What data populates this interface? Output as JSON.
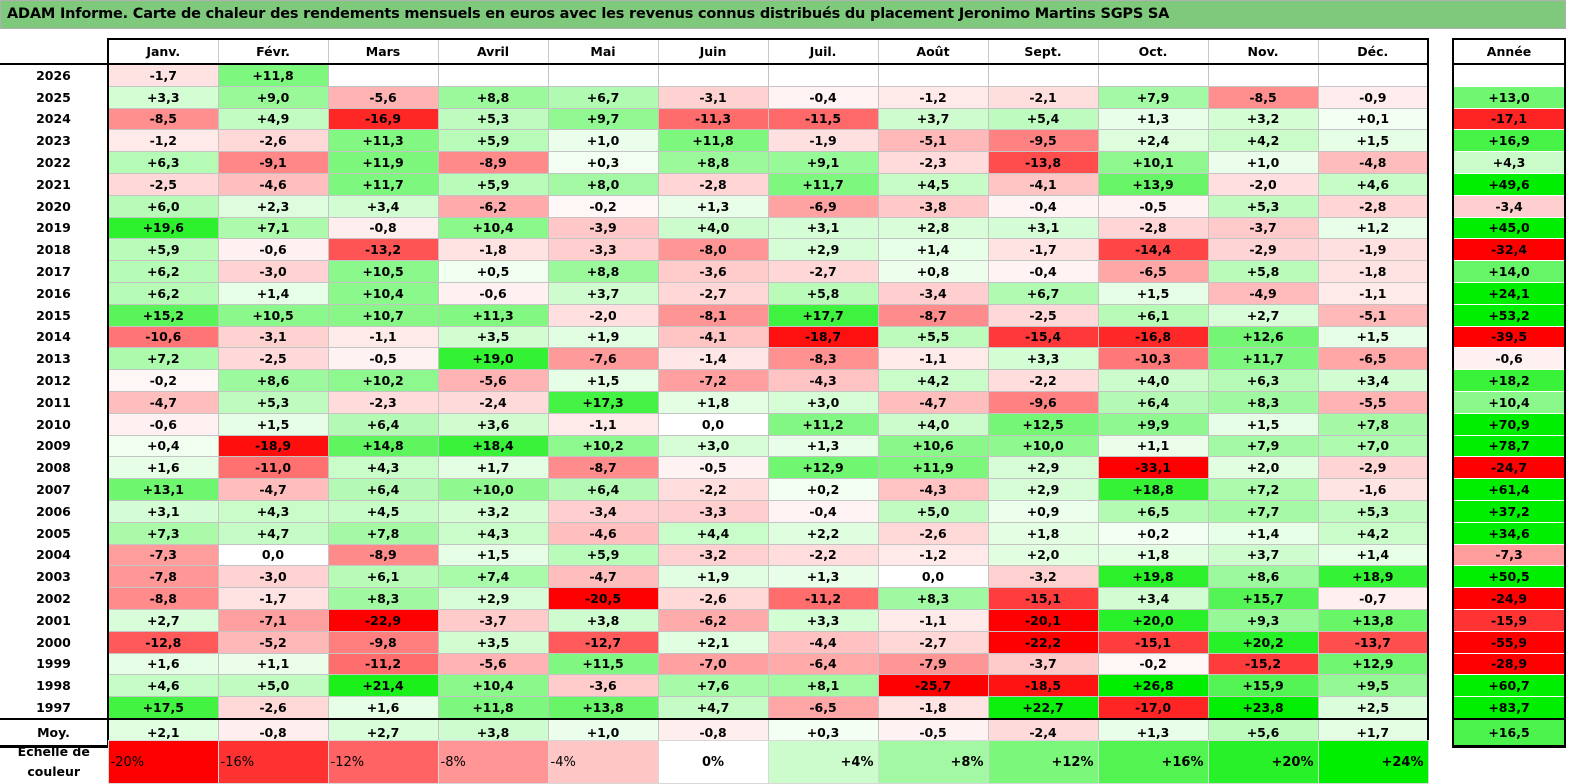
{
  "title": "ADAM Informe. Carte de chaleur des rendements mensuels en euros avec les revenus connus distribués du placement Jeronimo Martins SGPS SA",
  "months": [
    "Janv.",
    "Févr.",
    "Mars",
    "Avril",
    "Mai",
    "Juin",
    "Juil.",
    "Août",
    "Sept.",
    "Oct.",
    "Nov.",
    "Déc."
  ],
  "year_header": "Année",
  "rows": [
    {
      "year": "2026",
      "m": [
        "-1,7",
        "+11,8",
        "",
        "",
        "",
        "",
        "",
        "",
        "",
        "",
        "",
        ""
      ],
      "y": ""
    },
    {
      "year": "2025",
      "m": [
        "+3,3",
        "+9,0",
        "-5,6",
        "+8,8",
        "+6,7",
        "-3,1",
        "-0,4",
        "-1,2",
        "-2,1",
        "+7,9",
        "-8,5",
        "-0,9"
      ],
      "y": "+13,0"
    },
    {
      "year": "2024",
      "m": [
        "-8,5",
        "+4,9",
        "-16,9",
        "+5,3",
        "+9,7",
        "-11,3",
        "-11,5",
        "+3,7",
        "+5,4",
        "+1,3",
        "+3,2",
        "+0,1"
      ],
      "y": "-17,1"
    },
    {
      "year": "2023",
      "m": [
        "-1,2",
        "-2,6",
        "+11,3",
        "+5,9",
        "+1,0",
        "+11,8",
        "-1,9",
        "-5,1",
        "-9,5",
        "+2,4",
        "+4,2",
        "+1,5"
      ],
      "y": "+16,9"
    },
    {
      "year": "2022",
      "m": [
        "+6,3",
        "-9,1",
        "+11,9",
        "-8,9",
        "+0,3",
        "+8,8",
        "+9,1",
        "-2,3",
        "-13,8",
        "+10,1",
        "+1,0",
        "-4,8"
      ],
      "y": "+4,3"
    },
    {
      "year": "2021",
      "m": [
        "-2,5",
        "-4,6",
        "+11,7",
        "+5,9",
        "+8,0",
        "-2,8",
        "+11,7",
        "+4,5",
        "-4,1",
        "+13,9",
        "-2,0",
        "+4,6"
      ],
      "y": "+49,6"
    },
    {
      "year": "2020",
      "m": [
        "+6,0",
        "+2,3",
        "+3,4",
        "-6,2",
        "-0,2",
        "+1,3",
        "-6,9",
        "-3,8",
        "-0,4",
        "-0,5",
        "+5,3",
        "-2,8"
      ],
      "y": "-3,4"
    },
    {
      "year": "2019",
      "m": [
        "+19,6",
        "+7,1",
        "-0,8",
        "+10,4",
        "-3,9",
        "+4,0",
        "+3,1",
        "+2,8",
        "+3,1",
        "-2,8",
        "-3,7",
        "+1,2"
      ],
      "y": "+45,0"
    },
    {
      "year": "2018",
      "m": [
        "+5,9",
        "-0,6",
        "-13,2",
        "-1,8",
        "-3,3",
        "-8,0",
        "+2,9",
        "+1,4",
        "-1,7",
        "-14,4",
        "-2,9",
        "-1,9"
      ],
      "y": "-32,4"
    },
    {
      "year": "2017",
      "m": [
        "+6,2",
        "-3,0",
        "+10,5",
        "+0,5",
        "+8,8",
        "-3,6",
        "-2,7",
        "+0,8",
        "-0,4",
        "-6,5",
        "+5,8",
        "-1,8"
      ],
      "y": "+14,0"
    },
    {
      "year": "2016",
      "m": [
        "+6,2",
        "+1,4",
        "+10,4",
        "-0,6",
        "+3,7",
        "-2,7",
        "+5,8",
        "-3,4",
        "+6,7",
        "+1,5",
        "-4,9",
        "-1,1"
      ],
      "y": "+24,1"
    },
    {
      "year": "2015",
      "m": [
        "+15,2",
        "+10,5",
        "+10,7",
        "+11,3",
        "-2,0",
        "-8,1",
        "+17,7",
        "-8,7",
        "-2,5",
        "+6,1",
        "+2,7",
        "-5,1"
      ],
      "y": "+53,2"
    },
    {
      "year": "2014",
      "m": [
        "-10,6",
        "-3,1",
        "-1,1",
        "+3,5",
        "+1,9",
        "-4,1",
        "-18,7",
        "+5,5",
        "-15,4",
        "-16,8",
        "+12,6",
        "+1,5"
      ],
      "y": "-39,5"
    },
    {
      "year": "2013",
      "m": [
        "+7,2",
        "-2,5",
        "-0,5",
        "+19,0",
        "-7,6",
        "-1,4",
        "-8,3",
        "-1,1",
        "+3,3",
        "-10,3",
        "+11,7",
        "-6,5"
      ],
      "y": "-0,6"
    },
    {
      "year": "2012",
      "m": [
        "-0,2",
        "+8,6",
        "+10,2",
        "-5,6",
        "+1,5",
        "-7,2",
        "-4,3",
        "+4,2",
        "-2,2",
        "+4,0",
        "+6,3",
        "+3,4"
      ],
      "y": "+18,2"
    },
    {
      "year": "2011",
      "m": [
        "-4,7",
        "+5,3",
        "-2,3",
        "-2,4",
        "+17,3",
        "+1,8",
        "+3,0",
        "-4,7",
        "-9,6",
        "+6,4",
        "+8,3",
        "-5,5"
      ],
      "y": "+10,4"
    },
    {
      "year": "2010",
      "m": [
        "-0,6",
        "+1,5",
        "+6,4",
        "+3,6",
        "-1,1",
        "0,0",
        "+11,2",
        "+4,0",
        "+12,5",
        "+9,9",
        "+1,5",
        "+7,8"
      ],
      "y": "+70,9"
    },
    {
      "year": "2009",
      "m": [
        "+0,4",
        "-18,9",
        "+14,8",
        "+18,4",
        "+10,2",
        "+3,0",
        "+1,3",
        "+10,6",
        "+10,0",
        "+1,1",
        "+7,9",
        "+7,0"
      ],
      "y": "+78,7"
    },
    {
      "year": "2008",
      "m": [
        "+1,6",
        "-11,0",
        "+4,3",
        "+1,7",
        "-8,7",
        "-0,5",
        "+12,9",
        "+11,9",
        "+2,9",
        "-33,1",
        "+2,0",
        "-2,9"
      ],
      "y": "-24,7"
    },
    {
      "year": "2007",
      "m": [
        "+13,1",
        "-4,7",
        "+6,4",
        "+10,0",
        "+6,4",
        "-2,2",
        "+0,2",
        "-4,3",
        "+2,9",
        "+18,8",
        "+7,2",
        "-1,6"
      ],
      "y": "+61,4"
    },
    {
      "year": "2006",
      "m": [
        "+3,1",
        "+4,3",
        "+4,5",
        "+3,2",
        "-3,4",
        "-3,3",
        "-0,4",
        "+5,0",
        "+0,9",
        "+6,5",
        "+7,7",
        "+5,3"
      ],
      "y": "+37,2"
    },
    {
      "year": "2005",
      "m": [
        "+7,3",
        "+4,7",
        "+7,8",
        "+4,3",
        "-4,6",
        "+4,4",
        "+2,2",
        "-2,6",
        "+1,8",
        "+0,2",
        "+1,4",
        "+4,2"
      ],
      "y": "+34,6"
    },
    {
      "year": "2004",
      "m": [
        "-7,3",
        "0,0",
        "-8,9",
        "+1,5",
        "+5,9",
        "-3,2",
        "-2,2",
        "-1,2",
        "+2,0",
        "+1,8",
        "+3,7",
        "+1,4"
      ],
      "y": "-7,3"
    },
    {
      "year": "2003",
      "m": [
        "-7,8",
        "-3,0",
        "+6,1",
        "+7,4",
        "-4,7",
        "+1,9",
        "+1,3",
        "0,0",
        "-3,2",
        "+19,8",
        "+8,6",
        "+18,9"
      ],
      "y": "+50,5"
    },
    {
      "year": "2002",
      "m": [
        "-8,8",
        "-1,7",
        "+8,3",
        "+2,9",
        "-20,5",
        "-2,6",
        "-11,2",
        "+8,3",
        "-15,1",
        "+3,4",
        "+15,7",
        "-0,7"
      ],
      "y": "-24,9"
    },
    {
      "year": "2001",
      "m": [
        "+2,7",
        "-7,1",
        "-22,9",
        "-3,7",
        "+3,8",
        "-6,2",
        "+3,3",
        "-1,1",
        "-20,1",
        "+20,0",
        "+9,3",
        "+13,8"
      ],
      "y": "-15,9"
    },
    {
      "year": "2000",
      "m": [
        "-12,8",
        "-5,2",
        "-9,8",
        "+3,5",
        "-12,7",
        "+2,1",
        "-4,4",
        "-2,7",
        "-22,2",
        "-15,1",
        "+20,2",
        "-13,7"
      ],
      "y": "-55,9"
    },
    {
      "year": "1999",
      "m": [
        "+1,6",
        "+1,1",
        "-11,2",
        "-5,6",
        "+11,5",
        "-7,0",
        "-6,4",
        "-7,9",
        "-3,7",
        "-0,2",
        "-15,2",
        "+12,9"
      ],
      "y": "-28,9"
    },
    {
      "year": "1998",
      "m": [
        "+4,6",
        "+5,0",
        "+21,4",
        "+10,4",
        "-3,6",
        "+7,6",
        "+8,1",
        "-25,7",
        "-18,5",
        "+26,8",
        "+15,9",
        "+9,5"
      ],
      "y": "+60,7"
    },
    {
      "year": "1997",
      "m": [
        "+17,5",
        "-2,6",
        "+1,6",
        "+11,8",
        "+13,8",
        "+4,7",
        "-6,5",
        "-1,8",
        "+22,7",
        "-17,0",
        "+23,8",
        "+2,5"
      ],
      "y": "+83,7"
    }
  ],
  "average": {
    "label": "Moy.",
    "m": [
      "+2,1",
      "-0,8",
      "+2,7",
      "+3,8",
      "+1,0",
      "-0,8",
      "+0,3",
      "-0,5",
      "-2,4",
      "+1,3",
      "+5,6",
      "+1,7"
    ],
    "y": "+16,5"
  },
  "scale": {
    "label": "Echelle de couleur",
    "steps": [
      "-20%",
      "-16%",
      "-12%",
      "-8%",
      "-4%",
      "0%",
      "+4%",
      "+8%",
      "+12%",
      "+16%",
      "+20%",
      "+24%"
    ]
  },
  "colors": {
    "title_bg": "#7fc97c",
    "negative": "#ff0000",
    "positive": "#00ee00"
  }
}
